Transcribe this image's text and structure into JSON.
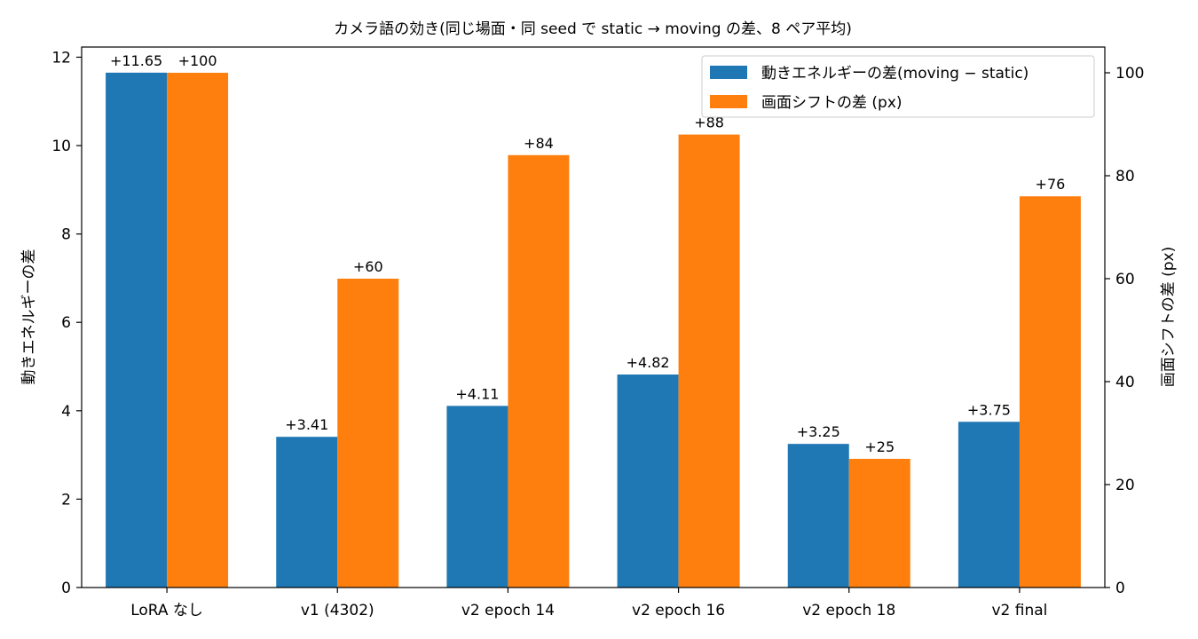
{
  "chart_data": {
    "type": "bar",
    "title": "カメラ語の効き(同じ場面・同 seed で static → moving の差、8 ペア平均)",
    "categories": [
      "LoRA なし",
      "v1 (4302)",
      "v2 epoch 14",
      "v2 epoch 16",
      "v2 epoch 18",
      "v2 final"
    ],
    "series": [
      {
        "name": "動きエネルギーの差(moving − static)",
        "axis": "left",
        "color": "#1f77b4",
        "values": [
          11.65,
          3.41,
          4.11,
          4.82,
          3.25,
          3.75
        ],
        "labels": [
          "+11.65",
          "+3.41",
          "+4.11",
          "+4.82",
          "+3.25",
          "+3.75"
        ]
      },
      {
        "name": "画面シフトの差 (px)",
        "axis": "right",
        "color": "#ff7f0e",
        "values": [
          100,
          60,
          84,
          88,
          25,
          76
        ],
        "labels": [
          "+100",
          "+60",
          "+84",
          "+88",
          "+25",
          "+76"
        ]
      }
    ],
    "ylabel_left": "動きエネルギーの差",
    "ylabel_right": "画面シフトの差 (px)",
    "ylim_left": [
      0,
      12.23
    ],
    "ylim_right": [
      0,
      105
    ],
    "yticks_left": [
      "0",
      "2",
      "4",
      "6",
      "8",
      "10",
      "12"
    ],
    "yticks_right": [
      "0",
      "20",
      "40",
      "60",
      "80",
      "100"
    ],
    "grid": false,
    "legend_position": "top-right"
  }
}
